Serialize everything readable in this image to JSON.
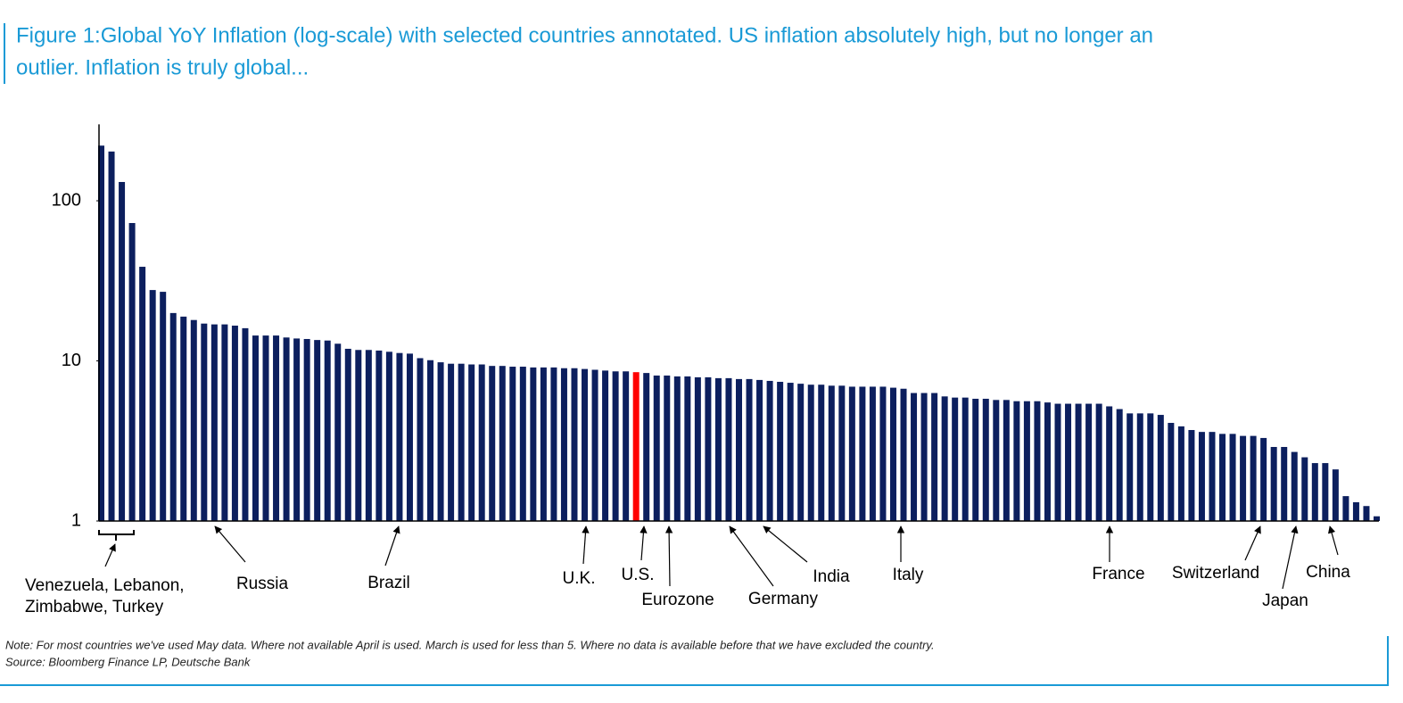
{
  "chart_data": {
    "type": "bar",
    "title_lines": [
      "Figure 1:Global YoY Inflation (log-scale) with selected countries annotated. US inflation absolutely high, but no longer an",
      "outlier. Inflation is truly global..."
    ],
    "values": [
      221,
      203,
      131,
      72.6,
      38.7,
      27.7,
      27,
      19.9,
      18.9,
      18,
      17.1,
      16.9,
      16.9,
      16.6,
      16,
      14.4,
      14.4,
      14.4,
      14,
      13.8,
      13.7,
      13.5,
      13.4,
      12.8,
      11.9,
      11.7,
      11.7,
      11.6,
      11.4,
      11.2,
      11.1,
      10.4,
      10.1,
      9.8,
      9.6,
      9.6,
      9.5,
      9.5,
      9.3,
      9.3,
      9.2,
      9.2,
      9.1,
      9.1,
      9.1,
      9,
      9,
      8.9,
      8.8,
      8.7,
      8.6,
      8.6,
      8.5,
      8.4,
      8.1,
      8.1,
      8,
      8,
      7.9,
      7.9,
      7.8,
      7.8,
      7.7,
      7.7,
      7.6,
      7.5,
      7.4,
      7.3,
      7.2,
      7.1,
      7.1,
      7,
      7,
      6.9,
      6.9,
      6.9,
      6.9,
      6.8,
      6.7,
      6.3,
      6.3,
      6.3,
      6,
      5.9,
      5.9,
      5.8,
      5.8,
      5.7,
      5.7,
      5.6,
      5.6,
      5.6,
      5.5,
      5.4,
      5.4,
      5.4,
      5.4,
      5.4,
      5.2,
      5,
      4.7,
      4.7,
      4.7,
      4.6,
      4.1,
      3.9,
      3.7,
      3.6,
      3.6,
      3.5,
      3.5,
      3.4,
      3.4,
      3.3,
      2.9,
      2.9,
      2.7,
      2.5,
      2.3,
      2.3,
      2.1,
      1.43,
      1.31,
      1.24,
      1.07
    ],
    "color": "#0c1f5e",
    "highlight": {
      "index": 52,
      "color": "#ff0000"
    },
    "log_scale": true,
    "ylim": [
      1,
      300
    ],
    "yticks": [
      1,
      10,
      100
    ],
    "annotations": [
      [
        "Venezuela, Lebanon,",
        "Zimbabwe, Turkey"
      ],
      [
        "Russia"
      ],
      [
        "Brazil"
      ],
      [
        "U.K."
      ],
      [
        "U.S."
      ],
      [
        "Eurozone"
      ],
      [
        "Germany"
      ],
      [
        "India"
      ],
      [
        "Italy"
      ],
      [
        "France"
      ],
      [
        "Switzerland"
      ],
      [
        "Japan"
      ],
      [
        "China"
      ]
    ],
    "note": "Note: For most countries we've used May data. Where not available April is used. March is used for less than 5. Where no data is available before that we have excluded the country.",
    "source": "Source: Bloomberg Finance LP, Deutsche Bank"
  }
}
